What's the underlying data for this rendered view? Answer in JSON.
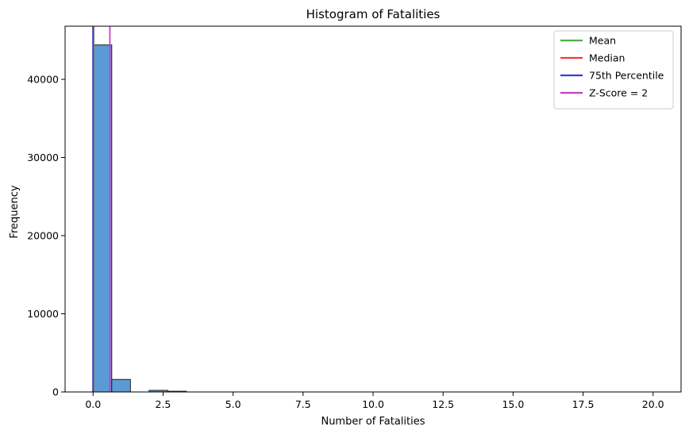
{
  "chart_data": {
    "type": "bar",
    "title": "Histogram of Fatalities",
    "xlabel": "Number of Fatalities",
    "ylabel": "Frequency",
    "xlim": [
      -1.0,
      21.0
    ],
    "ylim": [
      0,
      46800
    ],
    "x_ticks": [
      0.0,
      2.5,
      5.0,
      7.5,
      10.0,
      12.5,
      15.0,
      17.5,
      20.0
    ],
    "x_tick_labels": [
      "0.0",
      "2.5",
      "5.0",
      "7.5",
      "10.0",
      "12.5",
      "15.0",
      "17.5",
      "20.0"
    ],
    "y_ticks": [
      0,
      10000,
      20000,
      30000,
      40000
    ],
    "y_tick_labels": [
      "0",
      "10000",
      "20000",
      "30000",
      "40000"
    ],
    "bin_width": 0.6667,
    "bins": [
      {
        "start": 0.0,
        "count": 44400
      },
      {
        "start": 0.6667,
        "count": 1600
      },
      {
        "start": 1.3333,
        "count": 0
      },
      {
        "start": 2.0,
        "count": 200
      },
      {
        "start": 2.6667,
        "count": 90
      },
      {
        "start": 3.3333,
        "count": 0
      },
      {
        "start": 4.0,
        "count": 0
      },
      {
        "start": 4.6667,
        "count": 0
      },
      {
        "start": 5.3333,
        "count": 0
      },
      {
        "start": 6.0,
        "count": 0
      },
      {
        "start": 6.6667,
        "count": 0
      },
      {
        "start": 7.3333,
        "count": 0
      },
      {
        "start": 8.0,
        "count": 0
      },
      {
        "start": 8.6667,
        "count": 0
      },
      {
        "start": 9.3333,
        "count": 0
      },
      {
        "start": 10.0,
        "count": 0
      },
      {
        "start": 10.6667,
        "count": 0
      },
      {
        "start": 11.3333,
        "count": 0
      },
      {
        "start": 12.0,
        "count": 0
      },
      {
        "start": 12.6667,
        "count": 0
      },
      {
        "start": 13.3333,
        "count": 0
      },
      {
        "start": 14.0,
        "count": 0
      },
      {
        "start": 14.6667,
        "count": 0
      },
      {
        "start": 15.3333,
        "count": 0
      },
      {
        "start": 16.0,
        "count": 0
      },
      {
        "start": 16.6667,
        "count": 0
      },
      {
        "start": 17.3333,
        "count": 0
      },
      {
        "start": 18.0,
        "count": 0
      },
      {
        "start": 18.6667,
        "count": 0
      },
      {
        "start": 19.3333,
        "count": 0
      }
    ],
    "bar_color": "#5b9bd5",
    "bar_edge_color": "#1f1f1f",
    "vlines": [
      {
        "name": "Mean",
        "x": 0.02,
        "color": "#4daf4a"
      },
      {
        "name": "Median",
        "x": 0.0,
        "color": "#f03b3b"
      },
      {
        "name": "75th Percentile",
        "x": 0.0,
        "color": "#3b3bdb"
      },
      {
        "name": "Z-Score = 2",
        "x": 0.6,
        "color": "#c83fc8"
      }
    ],
    "legend_position": "top-right",
    "grid": false
  }
}
